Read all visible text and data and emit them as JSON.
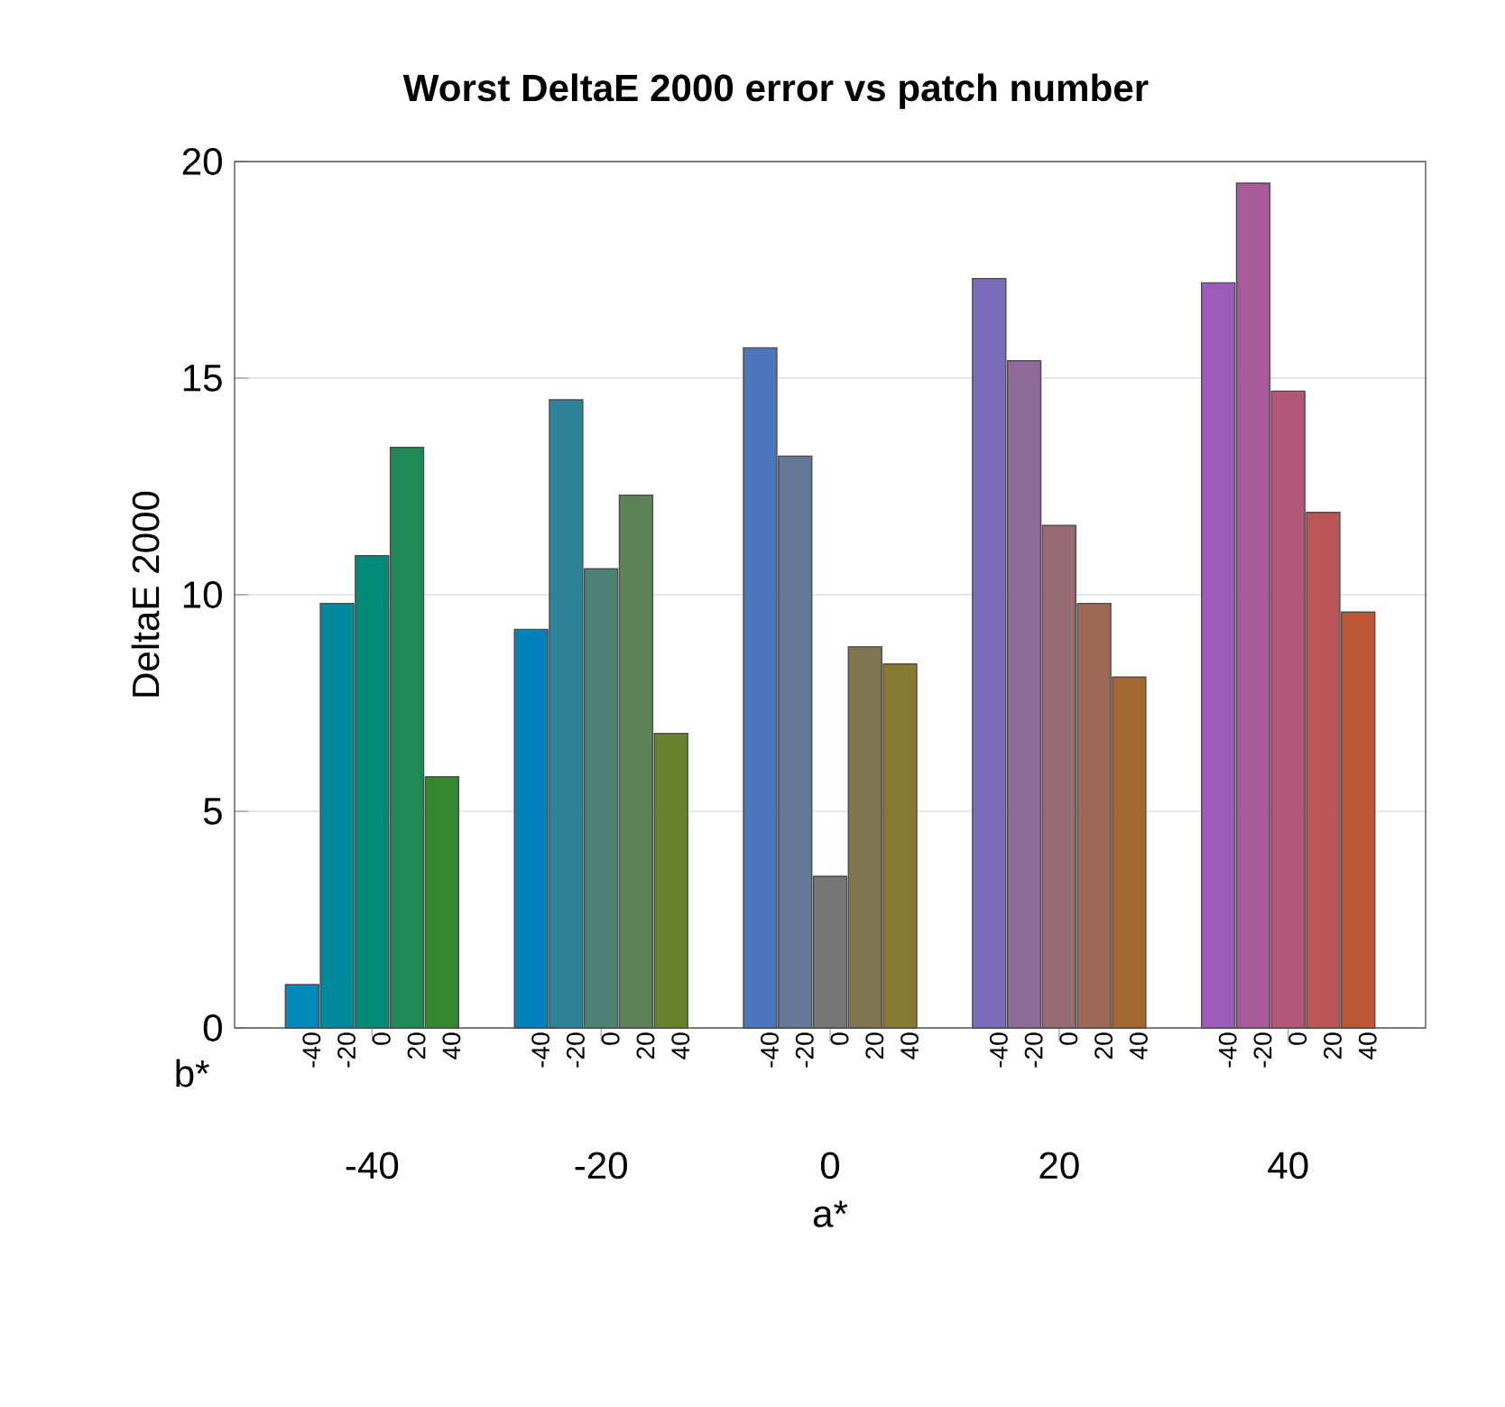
{
  "chart_data": {
    "type": "bar",
    "title": "Worst DeltaE 2000 error vs patch number",
    "xlabel": "a*",
    "ylabel": "DeltaE 2000",
    "legend_title": "b*",
    "categories": [
      "-40",
      "-20",
      "0",
      "20",
      "40"
    ],
    "ylim": [
      0,
      20
    ],
    "yticks": [
      0,
      5,
      10,
      15,
      20
    ],
    "grid": "y",
    "legend": "bottom",
    "series": [
      {
        "name": "-40",
        "values": [
          1.0,
          9.2,
          15.7,
          17.3,
          17.2
        ],
        "colors": [
          "#0089bb",
          "#0081bb",
          "#4a77bb",
          "#7a6bbb",
          "#9d5cbb"
        ]
      },
      {
        "name": "-20",
        "values": [
          9.8,
          14.5,
          13.2,
          15.4,
          19.5
        ],
        "colors": [
          "#00899a",
          "#2e8298",
          "#667898",
          "#8d6a98",
          "#a95a9b"
        ]
      },
      {
        "name": "0",
        "values": [
          10.9,
          10.6,
          3.5,
          11.6,
          14.7
        ],
        "colors": [
          "#008a78",
          "#4b8275",
          "#777777",
          "#976a74",
          "#b25778"
        ]
      },
      {
        "name": "20",
        "values": [
          13.4,
          12.3,
          8.8,
          9.8,
          11.9
        ],
        "colors": [
          "#1f8a55",
          "#5e8257",
          "#7f7452",
          "#9e6856",
          "#bb5658"
        ]
      },
      {
        "name": "40",
        "values": [
          5.8,
          6.8,
          8.4,
          8.1,
          9.6
        ],
        "colors": [
          "#35862e",
          "#66822e",
          "#887a30",
          "#a3682f",
          "#bd5734"
        ]
      }
    ]
  }
}
